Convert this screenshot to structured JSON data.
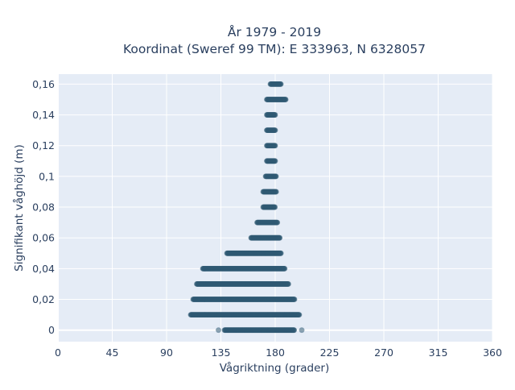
{
  "chart_data": {
    "type": "scatter",
    "title_line1": "År 1979 - 2019",
    "title_line2": "Koordinat (Sweref 99 TM): E 333963, N 6328057",
    "xlabel": "Vågriktning (grader)",
    "ylabel": "Signifikant våghöjd (m)",
    "xlim": [
      0,
      360
    ],
    "ylim": [
      -0.0075,
      0.1665
    ],
    "x_ticks": [
      0,
      45,
      90,
      135,
      180,
      225,
      270,
      315,
      360
    ],
    "x_tick_labels": [
      "0",
      "45",
      "90",
      "135",
      "180",
      "225",
      "270",
      "315",
      "360"
    ],
    "y_ticks": [
      0,
      0.02,
      0.04,
      0.06,
      0.08,
      0.1,
      0.12,
      0.14,
      0.16
    ],
    "y_tick_labels": [
      "0",
      "0,02",
      "0,04",
      "0,06",
      "0,08",
      "0,1",
      "0,12",
      "0,14",
      "0,16"
    ],
    "grid": true,
    "legend": "none",
    "colors": {
      "marker": "#2f5a72",
      "plot_bg": "#e5ecf6",
      "grid": "#ffffff",
      "text": "#2a3f5f"
    },
    "bands": [
      {
        "y": 0.16,
        "x_min": 176,
        "x_max": 185
      },
      {
        "y": 0.15,
        "x_min": 173,
        "x_max": 189
      },
      {
        "y": 0.14,
        "x_min": 173,
        "x_max": 180
      },
      {
        "y": 0.13,
        "x_min": 173,
        "x_max": 180
      },
      {
        "y": 0.12,
        "x_min": 173,
        "x_max": 180
      },
      {
        "y": 0.11,
        "x_min": 173,
        "x_max": 180
      },
      {
        "y": 0.1,
        "x_min": 172,
        "x_max": 181
      },
      {
        "y": 0.09,
        "x_min": 170,
        "x_max": 181
      },
      {
        "y": 0.08,
        "x_min": 170,
        "x_max": 180
      },
      {
        "y": 0.07,
        "x_min": 165,
        "x_max": 182
      },
      {
        "y": 0.06,
        "x_min": 160,
        "x_max": 184
      },
      {
        "y": 0.05,
        "x_min": 140,
        "x_max": 185
      },
      {
        "y": 0.04,
        "x_min": 120,
        "x_max": 188
      },
      {
        "y": 0.03,
        "x_min": 115,
        "x_max": 191
      },
      {
        "y": 0.02,
        "x_min": 112,
        "x_max": 196
      },
      {
        "y": 0.01,
        "x_min": 110,
        "x_max": 200
      },
      {
        "y": 0.0,
        "x_min": 138,
        "x_max": 196
      }
    ],
    "outliers": [
      {
        "x": 133,
        "y": 0.0
      },
      {
        "x": 202,
        "y": 0.0
      }
    ]
  }
}
